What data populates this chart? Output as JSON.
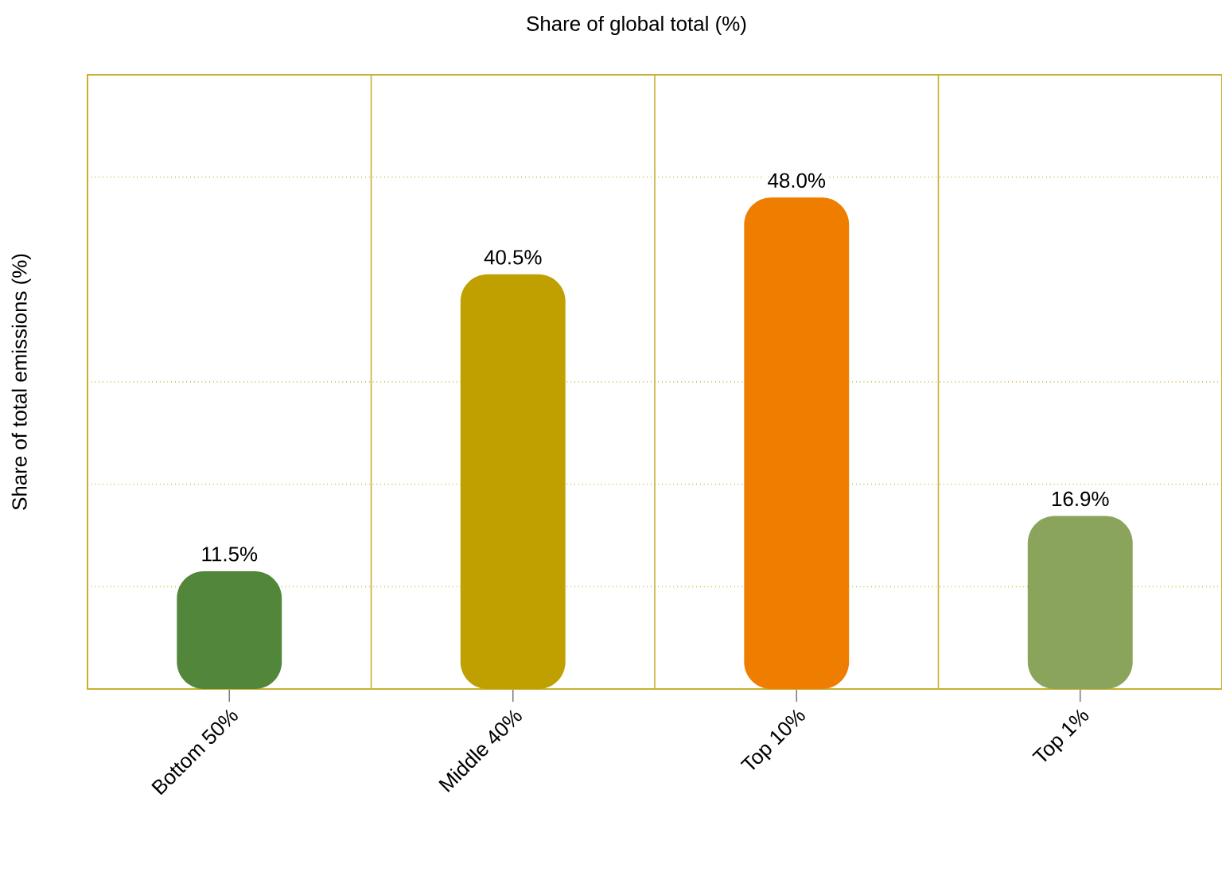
{
  "chart_data": {
    "type": "bar",
    "title": "Share of global total (%)",
    "ylabel": "Share of total emissions (%)",
    "categories": [
      "Bottom 50%",
      "Middle 40%",
      "Top 10%",
      "Top 1%"
    ],
    "values": [
      11.5,
      40.5,
      48.0,
      16.9
    ],
    "colors": [
      "#52863a",
      "#c0a000",
      "#ef7e00",
      "#8aa55b"
    ],
    "value_labels": [
      "11.5%",
      "40.5%",
      "48.0%",
      "16.9%"
    ],
    "ylim": [
      0,
      60
    ],
    "yticks": [
      {
        "value": 10,
        "label": null
      },
      {
        "value": 20,
        "label": null
      },
      {
        "value": 30,
        "label": null
      },
      {
        "value": 50,
        "label": null
      }
    ],
    "grid": true,
    "tick_labels": "x"
  }
}
